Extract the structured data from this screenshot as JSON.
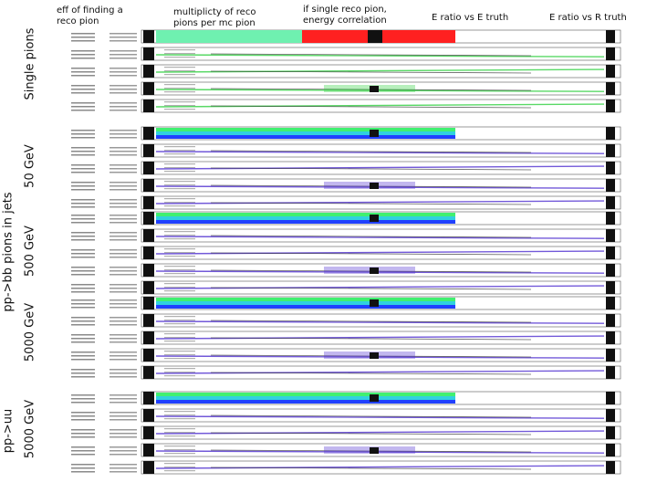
{
  "column_headers": [
    "eff of finding a\nreco pion",
    "multiplicty of reco\npions per mc pion",
    "if single reco pion,\nenergy correlation",
    "E ratio vs E truth",
    "E ratio vs R truth"
  ],
  "row_labels": {
    "single_pions": "Single pions",
    "bb_title": "pp->bb pions in jets",
    "bb_50": "50 GeV",
    "bb_500": "500 GeV",
    "bb_5000": "5000 GeV",
    "uu_title": "pp->uu",
    "uu_5000": "5000 GeV"
  },
  "chart_data": {
    "type": "heatmap",
    "title": "",
    "columns": [
      "eff of finding a reco pion",
      "multiplicty of reco pions per mc pion",
      "if single reco pion, energy correlation",
      "E ratio vs E truth",
      "E ratio vs R truth"
    ],
    "groups": [
      {
        "name": "Single pions",
        "panels": 5,
        "color_scale": "red-green"
      },
      {
        "name": "pp->bb pions in jets 50 GeV",
        "panels": 5,
        "color_scale": "blue-cyan"
      },
      {
        "name": "pp->bb pions in jets 500 GeV",
        "panels": 5,
        "color_scale": "blue-purple"
      },
      {
        "name": "pp->bb pions in jets 5000 GeV",
        "panels": 5,
        "color_scale": "blue-purple"
      },
      {
        "name": "pp->uu 5000 GeV",
        "panels": 5,
        "color_scale": "blue-purple"
      }
    ],
    "axes_labels_visible": false
  }
}
